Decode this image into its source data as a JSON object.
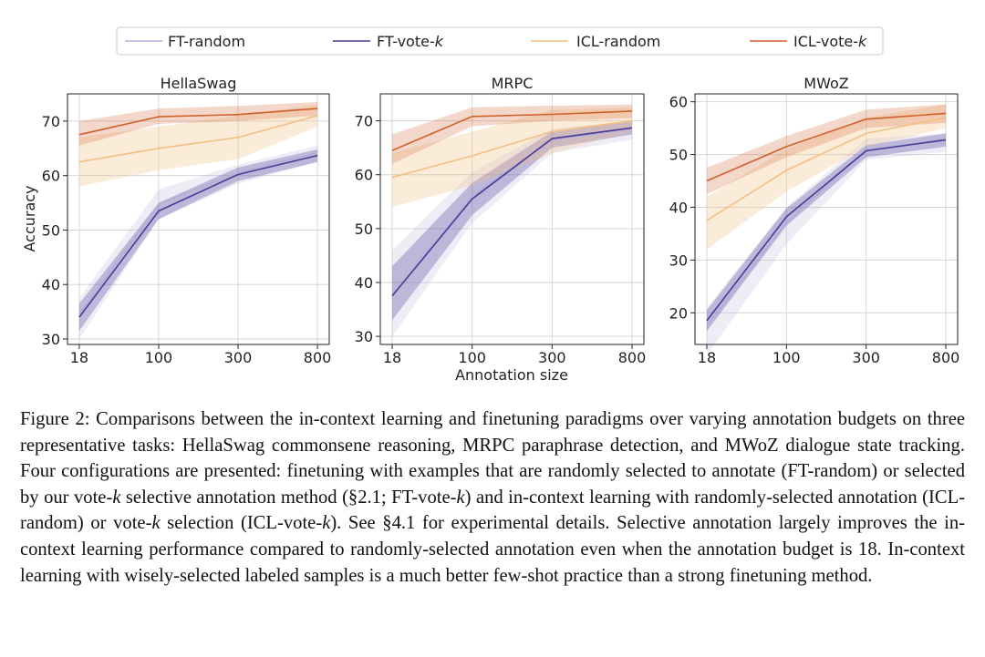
{
  "colors": {
    "ft_random": "#b3aed6",
    "ft_vote_k": "#4b3a96",
    "icl_random": "#f2bf83",
    "icl_vote_k": "#d1602b"
  },
  "legend": {
    "entries": [
      {
        "key": "ft_random",
        "prefix": "FT-random",
        "italic": ""
      },
      {
        "key": "ft_vote_k",
        "prefix": "FT-vote-",
        "italic": "k"
      },
      {
        "key": "icl_random",
        "prefix": "ICL-random",
        "italic": ""
      },
      {
        "key": "icl_vote_k",
        "prefix": "ICL-vote-",
        "italic": "k"
      }
    ]
  },
  "axes_text": {
    "ylabel": "Accuracy",
    "xlabel": "Annotation size"
  },
  "chart_data": [
    {
      "type": "line",
      "title": "HellaSwag",
      "x": [
        "18",
        "100",
        "300",
        "800"
      ],
      "ylim": [
        29,
        75
      ],
      "yticks": [
        30,
        40,
        50,
        60,
        70
      ],
      "grid": true,
      "series": [
        {
          "name": "FT-random",
          "key": "ft_random",
          "values": [
            34.5,
            54.8,
            60.5,
            64.2
          ],
          "lower": [
            30.0,
            52.0,
            58.5,
            62.5
          ],
          "upper": [
            37.5,
            57.5,
            62.0,
            65.5
          ]
        },
        {
          "name": "FT-vote-k",
          "key": "ft_vote_k",
          "values": [
            34.0,
            53.5,
            60.2,
            63.7
          ],
          "lower": [
            31.5,
            52.0,
            59.0,
            62.5
          ],
          "upper": [
            36.5,
            55.0,
            61.5,
            64.8
          ]
        },
        {
          "name": "ICL-random",
          "key": "icl_random",
          "values": [
            62.5,
            65.0,
            67.0,
            71.0
          ],
          "lower": [
            58.0,
            61.0,
            63.0,
            69.0
          ],
          "upper": [
            67.0,
            69.0,
            71.0,
            73.0
          ]
        },
        {
          "name": "ICL-vote-k",
          "key": "icl_vote_k",
          "values": [
            67.5,
            70.8,
            71.2,
            72.3
          ],
          "lower": [
            65.5,
            69.5,
            70.0,
            71.0
          ],
          "upper": [
            70.0,
            72.3,
            72.8,
            73.5
          ]
        }
      ]
    },
    {
      "type": "line",
      "title": "MRPC",
      "x": [
        "18",
        "100",
        "300",
        "800"
      ],
      "ylim": [
        28.5,
        75
      ],
      "yticks": [
        30,
        40,
        50,
        60,
        70
      ],
      "grid": true,
      "series": [
        {
          "name": "FT-random",
          "key": "ft_random",
          "values": [
            37.5,
            56.0,
            66.5,
            68.5
          ],
          "lower": [
            30.0,
            51.0,
            64.0,
            66.5
          ],
          "upper": [
            46.0,
            60.5,
            68.5,
            70.0
          ]
        },
        {
          "name": "FT-vote-k",
          "key": "ft_vote_k",
          "values": [
            37.5,
            55.5,
            66.7,
            68.7
          ],
          "lower": [
            33.0,
            52.5,
            65.0,
            67.5
          ],
          "upper": [
            43.0,
            58.5,
            68.0,
            70.0
          ]
        },
        {
          "name": "ICL-random",
          "key": "icl_random",
          "values": [
            59.5,
            63.5,
            68.0,
            70.0
          ],
          "lower": [
            54.0,
            58.0,
            64.0,
            68.0
          ],
          "upper": [
            64.0,
            68.0,
            72.0,
            72.5
          ]
        },
        {
          "name": "ICL-vote-k",
          "key": "icl_vote_k",
          "values": [
            64.5,
            70.8,
            71.2,
            71.8
          ],
          "lower": [
            62.0,
            69.0,
            70.0,
            70.5
          ],
          "upper": [
            67.5,
            72.5,
            72.8,
            73.0
          ]
        }
      ]
    },
    {
      "type": "line",
      "title": "MWoZ",
      "x": [
        "18",
        "100",
        "300",
        "800"
      ],
      "ylim": [
        14,
        61.5
      ],
      "yticks": [
        20,
        30,
        40,
        50,
        60
      ],
      "grid": true,
      "series": [
        {
          "name": "FT-random",
          "key": "ft_random",
          "values": [
            17.5,
            37.0,
            51.0,
            52.5
          ],
          "lower": [
            12.0,
            33.0,
            49.0,
            50.5
          ],
          "upper": [
            21.0,
            40.0,
            53.0,
            54.0
          ]
        },
        {
          "name": "FT-vote-k",
          "key": "ft_vote_k",
          "values": [
            18.5,
            38.2,
            50.7,
            52.8
          ],
          "lower": [
            16.5,
            36.5,
            49.5,
            51.5
          ],
          "upper": [
            20.5,
            39.8,
            51.8,
            54.0
          ]
        },
        {
          "name": "ICL-random",
          "key": "icl_random",
          "values": [
            37.5,
            47.0,
            54.0,
            57.0
          ],
          "lower": [
            32.0,
            43.0,
            51.5,
            55.0
          ],
          "upper": [
            42.0,
            51.0,
            57.0,
            59.5
          ]
        },
        {
          "name": "ICL-vote-k",
          "key": "icl_vote_k",
          "values": [
            45.0,
            51.5,
            56.7,
            57.8
          ],
          "lower": [
            42.5,
            49.5,
            55.0,
            56.0
          ],
          "upper": [
            47.5,
            53.5,
            58.5,
            59.5
          ]
        }
      ]
    }
  ],
  "caption": {
    "label": "Figure 2:",
    "p1": " Comparisons between the in-context learning and finetuning paradigms over varying annotation budgets on three representative tasks: HellaSwag commonsene reasoning, MRPC paraphrase detection, and MWoZ dialogue state tracking. Four configurations are presented: finetuning with examples that are randomly selected to annotate (FT-random) or selected by our vote-",
    "k1": "k",
    "p2": " selective annotation method (§2.1; FT-vote-",
    "k2": "k",
    "p3": ") and in-context learning with randomly-selected annotation (ICL-random) or vote-",
    "k3": "k",
    "p4": " selection (ICL-vote-",
    "k4": "k",
    "p5": "). See §4.1 for experimental details. Selective annotation largely improves the in-context learning performance compared to randomly-selected annotation even when the annotation budget is 18. In-context learning with wisely-selected labeled samples is a much better few-shot practice than a strong finetuning method."
  }
}
